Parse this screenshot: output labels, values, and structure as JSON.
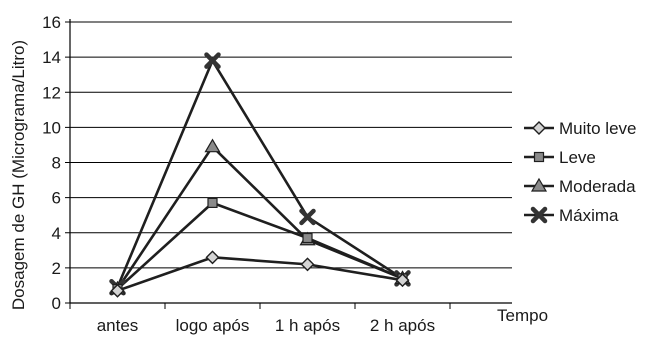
{
  "chart_data": {
    "type": "line",
    "title": "",
    "xlabel": "Tempo",
    "ylabel": "Dosagem de GH (Micrograma/Litro)",
    "categories": [
      "antes",
      "logo após",
      "1 h após",
      "2 h após"
    ],
    "ylim": [
      0,
      16
    ],
    "yticks": [
      0,
      2,
      4,
      6,
      8,
      10,
      12,
      14,
      16
    ],
    "grid": true,
    "legend_position": "right",
    "series": [
      {
        "name": "Muito leve",
        "marker": "diamond",
        "values": [
          0.7,
          2.6,
          2.2,
          1.3
        ]
      },
      {
        "name": "Leve",
        "marker": "square",
        "values": [
          0.8,
          5.7,
          3.7,
          1.4
        ]
      },
      {
        "name": "Moderada",
        "marker": "triangle",
        "values": [
          0.8,
          8.9,
          3.6,
          1.4
        ]
      },
      {
        "name": "Máxima",
        "marker": "x",
        "values": [
          0.9,
          13.8,
          4.9,
          1.4
        ]
      }
    ]
  },
  "colors": {
    "line": "#1f1f1f",
    "marker_fill_light": "#d4d4d4",
    "marker_fill_mid": "#8a8a8a",
    "grid": "#000000"
  }
}
